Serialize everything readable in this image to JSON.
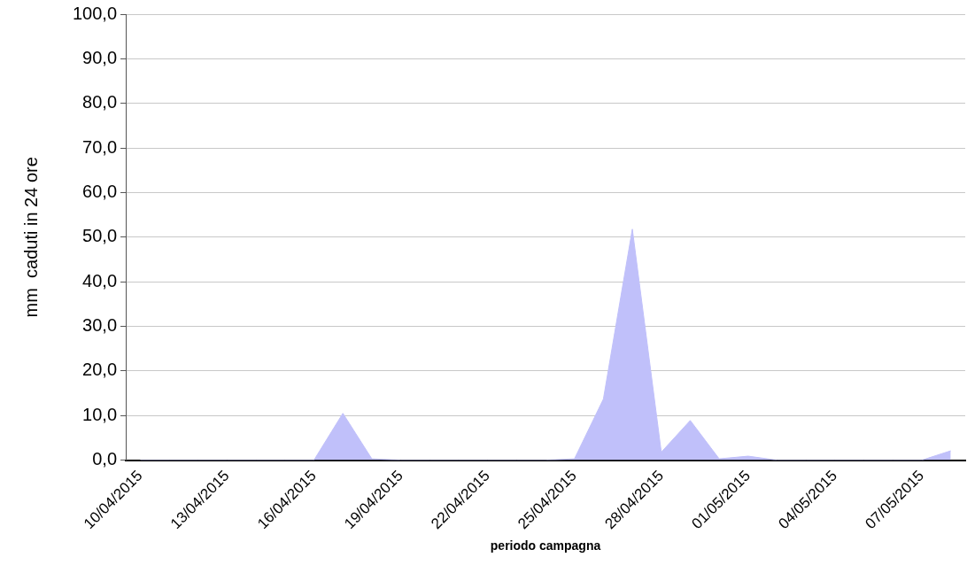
{
  "chart_data": {
    "type": "area",
    "xlabel": "periodo campagna",
    "ylabel": "mm  caduti in 24 ore",
    "categories": [
      "10/04/2015",
      null,
      null,
      "13/04/2015",
      null,
      null,
      "16/04/2015",
      null,
      null,
      "19/04/2015",
      null,
      null,
      "22/04/2015",
      null,
      null,
      "25/04/2015",
      null,
      null,
      "28/04/2015",
      null,
      null,
      "01/05/2015",
      null,
      null,
      "04/05/2015",
      null,
      null,
      "07/05/2015",
      null
    ],
    "series": [
      {
        "color": "#c0c0fa",
        "values": [
          0,
          0,
          0,
          0,
          0,
          0,
          0,
          10.5,
          0.3,
          0,
          0,
          0,
          0,
          0,
          0,
          0.3,
          13.7,
          51.8,
          1.8,
          8.9,
          0.3,
          0.9,
          0,
          0,
          0,
          0,
          0,
          0,
          2.1
        ]
      }
    ],
    "ylim": [
      0,
      100
    ],
    "yticks": [
      {
        "value": 0,
        "label": "0,0"
      },
      {
        "value": 10,
        "label": "10,0"
      },
      {
        "value": 20,
        "label": "20,0"
      },
      {
        "value": 30,
        "label": "30,0"
      },
      {
        "value": 40,
        "label": "40,0"
      },
      {
        "value": 50,
        "label": "50,0"
      },
      {
        "value": 60,
        "label": "60,0"
      },
      {
        "value": 70,
        "label": "70,0"
      },
      {
        "value": 80,
        "label": "80,0"
      },
      {
        "value": 90,
        "label": "90,0"
      },
      {
        "value": 100,
        "label": "100,0"
      }
    ],
    "grid": "y",
    "legend": false
  }
}
